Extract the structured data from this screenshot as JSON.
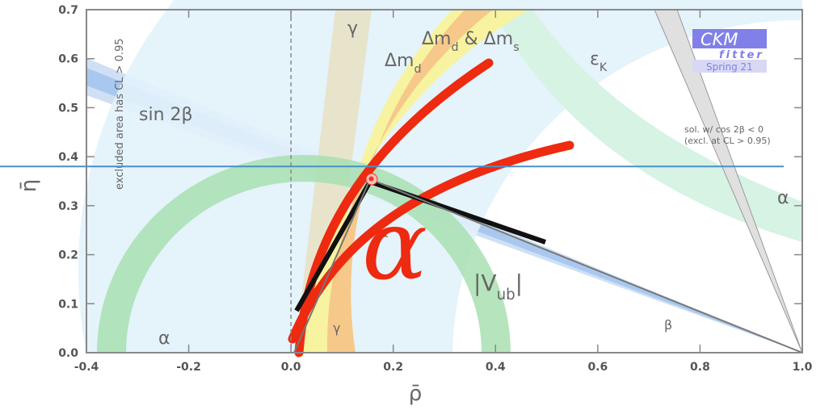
{
  "chart_data": {
    "type": "ckm",
    "x_label": "ρ̄",
    "y_label": "η̄",
    "xlim": [
      -0.4,
      1
    ],
    "ylim": [
      0,
      0.7
    ],
    "xticks": [
      -0.4,
      -0.2,
      {
        "value": 0,
        "label": "0.0"
      },
      0.2,
      0.4,
      0.6,
      0.8,
      {
        "value": 1,
        "label": "1.0"
      }
    ],
    "yticks": [
      {
        "value": 0,
        "label": "0.0"
      },
      0.1,
      0.2,
      0.3,
      0.4,
      0.5,
      0.6,
      0.7
    ],
    "hline": 0.38,
    "vline": 0,
    "apex": [
      0.157,
      0.355
    ],
    "annotations": {
      "gamma_top": [
        "γ"
      ],
      "dmds": [
        "Δm",
        "d",
        " & Δm",
        "s"
      ],
      "dmd": [
        "Δm",
        "d"
      ],
      "epsk": [
        "ε",
        "K"
      ],
      "sin2b": [
        "sin 2β"
      ],
      "excl": [
        "excluded area has CL > 0.95"
      ],
      "alpha_right": [
        "α"
      ],
      "alpha_left": [
        "α"
      ],
      "vub": [
        "|V",
        "ub",
        "|"
      ],
      "beta": [
        "β"
      ],
      "gamma_bottom": [
        "γ"
      ],
      "alpha_small": [
        "α"
      ],
      "sol": [
        "sol. w/ cos 2β < 0"
      ],
      "sol_excl": [
        "(excl. at CL > 0.95)"
      ],
      "ckm": [
        "CKM"
      ],
      "fitter": [
        "fitter"
      ],
      "spring": [
        "Spring 21"
      ],
      "alpha_big": [
        "α"
      ]
    }
  }
}
